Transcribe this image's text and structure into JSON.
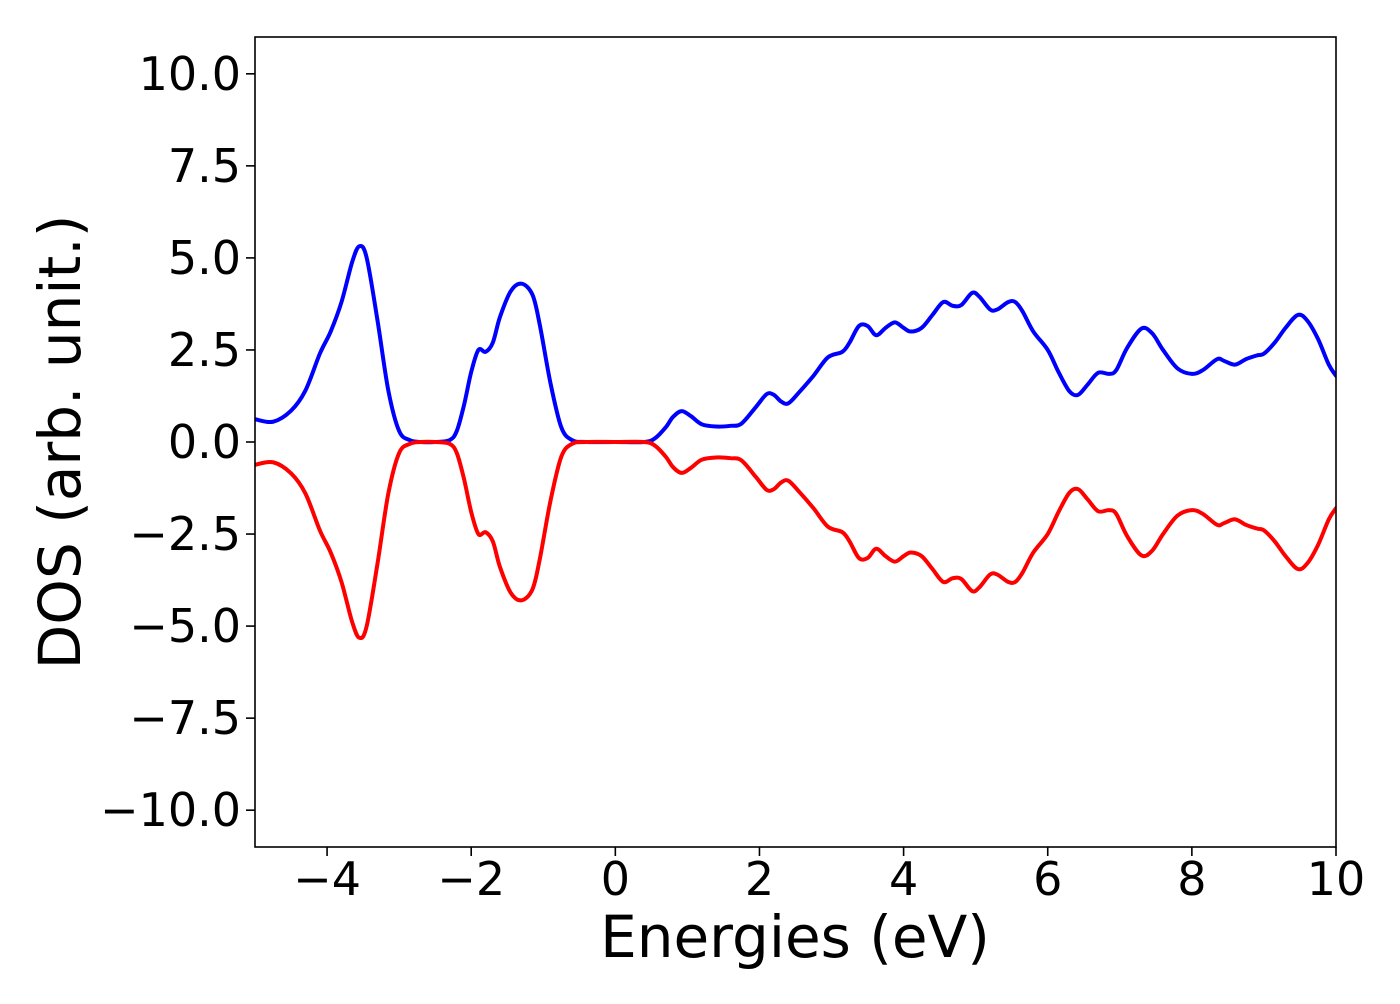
{
  "chart_data": {
    "type": "line",
    "title": "",
    "xlabel": "Energies (eV)",
    "ylabel": "DOS (arb. unit.)",
    "xlim": [
      -5,
      10
    ],
    "ylim": [
      -11,
      11
    ],
    "grid": false,
    "legend": "none",
    "x_ticks": [
      -4,
      -2,
      0,
      2,
      4,
      6,
      8,
      10
    ],
    "x_tick_labels": [
      "−4",
      "−2",
      "0",
      "2",
      "4",
      "6",
      "8",
      "10"
    ],
    "y_ticks": [
      10,
      7.5,
      5,
      2.5,
      0,
      -2.5,
      -5,
      -7.5,
      -10
    ],
    "y_tick_labels": [
      "10.0",
      "7.5",
      "5.0",
      "2.5",
      "0.0",
      "−2.5",
      "−5.0",
      "−7.5",
      "−10.0"
    ],
    "series": [
      {
        "color": "#0000ff",
        "x": [
          -5.0,
          -4.75,
          -4.5,
          -4.3,
          -4.1,
          -3.95,
          -3.8,
          -3.65,
          -3.55,
          -3.45,
          -3.3,
          -3.15,
          -3.0,
          -2.85,
          -2.7,
          -2.5,
          -2.3,
          -2.2,
          -2.1,
          -2.0,
          -1.9,
          -1.8,
          -1.7,
          -1.6,
          -1.45,
          -1.3,
          -1.15,
          -1.05,
          -0.9,
          -0.75,
          -0.6,
          -0.4,
          0.0,
          0.4,
          0.55,
          0.7,
          0.8,
          0.92,
          1.05,
          1.2,
          1.4,
          1.6,
          1.75,
          1.95,
          2.1,
          2.2,
          2.3,
          2.4,
          2.55,
          2.75,
          2.95,
          3.15,
          3.25,
          3.38,
          3.5,
          3.62,
          3.75,
          3.88,
          4.0,
          4.1,
          4.25,
          4.4,
          4.55,
          4.68,
          4.8,
          4.95,
          5.05,
          5.2,
          5.3,
          5.45,
          5.55,
          5.65,
          5.8,
          6.0,
          6.15,
          6.3,
          6.42,
          6.55,
          6.7,
          6.85,
          6.95,
          7.1,
          7.3,
          7.45,
          7.6,
          7.8,
          8.0,
          8.15,
          8.35,
          8.45,
          8.6,
          8.75,
          8.9,
          9.0,
          9.15,
          9.3,
          9.47,
          9.6,
          9.75,
          9.9,
          10.0
        ],
        "values": [
          0.62,
          0.55,
          0.85,
          1.4,
          2.4,
          3.0,
          3.8,
          4.9,
          5.32,
          5.0,
          3.3,
          1.4,
          0.3,
          0.05,
          0.0,
          0.0,
          0.05,
          0.3,
          1.0,
          1.9,
          2.5,
          2.45,
          2.7,
          3.4,
          4.1,
          4.3,
          4.0,
          3.2,
          1.6,
          0.4,
          0.05,
          0.0,
          0.0,
          0.0,
          0.1,
          0.4,
          0.68,
          0.84,
          0.7,
          0.48,
          0.42,
          0.44,
          0.5,
          0.95,
          1.3,
          1.28,
          1.1,
          1.05,
          1.35,
          1.8,
          2.3,
          2.45,
          2.7,
          3.15,
          3.15,
          2.9,
          3.1,
          3.25,
          3.1,
          3.0,
          3.1,
          3.45,
          3.8,
          3.7,
          3.72,
          4.05,
          3.95,
          3.6,
          3.6,
          3.8,
          3.8,
          3.55,
          3.0,
          2.5,
          1.9,
          1.38,
          1.28,
          1.55,
          1.88,
          1.85,
          1.95,
          2.55,
          3.08,
          2.95,
          2.5,
          2.0,
          1.85,
          1.95,
          2.25,
          2.2,
          2.1,
          2.25,
          2.35,
          2.4,
          2.7,
          3.1,
          3.45,
          3.3,
          2.8,
          2.1,
          1.8
        ]
      },
      {
        "color": "#ff0000",
        "x": [
          -5.0,
          -4.75,
          -4.5,
          -4.3,
          -4.1,
          -3.95,
          -3.8,
          -3.65,
          -3.55,
          -3.45,
          -3.3,
          -3.15,
          -3.0,
          -2.85,
          -2.7,
          -2.5,
          -2.3,
          -2.2,
          -2.1,
          -2.0,
          -1.9,
          -1.8,
          -1.7,
          -1.6,
          -1.45,
          -1.3,
          -1.15,
          -1.05,
          -0.9,
          -0.75,
          -0.6,
          -0.4,
          0.0,
          0.4,
          0.55,
          0.7,
          0.8,
          0.92,
          1.05,
          1.2,
          1.4,
          1.6,
          1.75,
          1.95,
          2.1,
          2.2,
          2.3,
          2.4,
          2.55,
          2.75,
          2.95,
          3.15,
          3.25,
          3.38,
          3.5,
          3.62,
          3.75,
          3.88,
          4.0,
          4.1,
          4.25,
          4.4,
          4.55,
          4.68,
          4.8,
          4.95,
          5.05,
          5.2,
          5.3,
          5.45,
          5.55,
          5.65,
          5.8,
          6.0,
          6.15,
          6.3,
          6.42,
          6.55,
          6.7,
          6.85,
          6.95,
          7.1,
          7.3,
          7.45,
          7.6,
          7.8,
          8.0,
          8.15,
          8.35,
          8.45,
          8.6,
          8.75,
          8.9,
          9.0,
          9.15,
          9.3,
          9.47,
          9.6,
          9.75,
          9.9,
          10.0
        ],
        "values": [
          -0.62,
          -0.55,
          -0.85,
          -1.4,
          -2.4,
          -3.0,
          -3.8,
          -4.9,
          -5.32,
          -5.0,
          -3.3,
          -1.4,
          -0.3,
          -0.05,
          0.0,
          0.0,
          -0.05,
          -0.3,
          -1.0,
          -1.9,
          -2.5,
          -2.45,
          -2.7,
          -3.4,
          -4.1,
          -4.3,
          -4.0,
          -3.2,
          -1.6,
          -0.4,
          -0.05,
          0.0,
          0.0,
          0.0,
          -0.1,
          -0.4,
          -0.68,
          -0.84,
          -0.7,
          -0.48,
          -0.42,
          -0.44,
          -0.5,
          -0.95,
          -1.3,
          -1.28,
          -1.1,
          -1.05,
          -1.35,
          -1.8,
          -2.3,
          -2.45,
          -2.7,
          -3.15,
          -3.15,
          -2.9,
          -3.1,
          -3.25,
          -3.1,
          -3.0,
          -3.1,
          -3.45,
          -3.8,
          -3.7,
          -3.72,
          -4.05,
          -3.95,
          -3.6,
          -3.6,
          -3.8,
          -3.8,
          -3.55,
          -3.0,
          -2.5,
          -1.9,
          -1.38,
          -1.28,
          -1.55,
          -1.88,
          -1.85,
          -1.95,
          -2.55,
          -3.08,
          -2.95,
          -2.5,
          -2.0,
          -1.85,
          -1.95,
          -2.25,
          -2.2,
          -2.1,
          -2.25,
          -2.35,
          -2.4,
          -2.7,
          -3.1,
          -3.45,
          -3.3,
          -2.8,
          -2.1,
          -1.8
        ]
      }
    ]
  }
}
